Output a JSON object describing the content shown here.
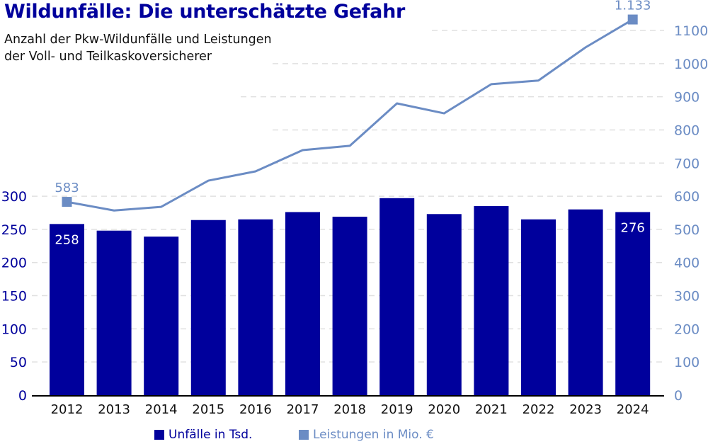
{
  "header": {
    "title": "Wildunfälle: Die unterschätzte Gefahr",
    "subtitle_line1": "Anzahl der Pkw-Wildunfälle und Leistungen",
    "subtitle_line2": "der Voll- und Teilkaskoversicherer"
  },
  "colors": {
    "bars": "#00009c",
    "line": "#6b8cc4",
    "grid": "#e0e0e0",
    "axis": "#000000",
    "left_axis_text": "#00009c",
    "right_axis_text": "#6b8cc4"
  },
  "legend": {
    "items": [
      {
        "label": "Unfälle in Tsd.",
        "color": "#00009c"
      },
      {
        "label": "Leistungen in Mio. €",
        "color": "#6b8cc4"
      }
    ]
  },
  "chart_data": {
    "type": "bar+line",
    "title": "Wildunfälle: Die unterschätzte Gefahr",
    "subtitle": "Anzahl der Pkw-Wildunfälle und Leistungen der Voll- und Teilkaskoversicherer",
    "categories": [
      "2012",
      "2013",
      "2014",
      "2015",
      "2016",
      "2017",
      "2018",
      "2019",
      "2020",
      "2021",
      "2022",
      "2023",
      "2024"
    ],
    "series": [
      {
        "name": "Unfälle in Tsd.",
        "type": "bar",
        "axis": "left",
        "values": [
          258,
          248,
          239,
          264,
          265,
          276,
          269,
          297,
          273,
          285,
          265,
          280,
          276
        ],
        "labeled_points": [
          {
            "index": 0,
            "label": "258"
          },
          {
            "index": 12,
            "label": "276"
          }
        ]
      },
      {
        "name": "Leistungen in Mio. €",
        "type": "line",
        "axis": "right",
        "values": [
          583,
          557,
          568,
          647,
          675,
          739,
          752,
          880,
          850,
          938,
          949,
          1049,
          1133
        ],
        "labeled_points": [
          {
            "index": 0,
            "label": "583"
          },
          {
            "index": 12,
            "label": "1.133"
          }
        ]
      }
    ],
    "left_axis": {
      "ticks": [
        "0",
        "50",
        "100",
        "150",
        "200",
        "250",
        "300"
      ],
      "range": [
        0,
        300
      ]
    },
    "right_axis": {
      "ticks": [
        "0",
        "100",
        "200",
        "300",
        "400",
        "500",
        "600",
        "700",
        "800",
        "900",
        "1000",
        "1100"
      ],
      "range": [
        0,
        1100
      ]
    },
    "grid": true,
    "legend_position": "bottom"
  }
}
